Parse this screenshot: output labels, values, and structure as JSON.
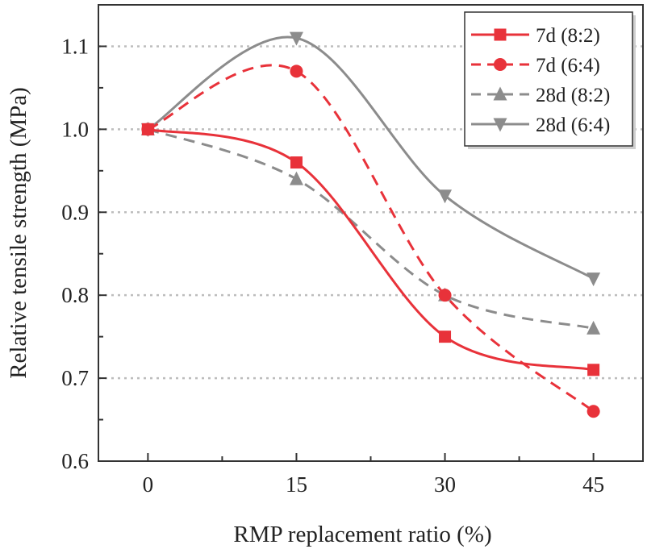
{
  "chart_data": {
    "type": "line",
    "x": [
      0,
      15,
      30,
      45
    ],
    "xticks": [
      "0",
      "15",
      "30",
      "45"
    ],
    "yticks": [
      "0.6",
      "0.7",
      "0.8",
      "0.9",
      "1.0",
      "1.1"
    ],
    "xlabel": "RMP replacement ratio (%)",
    "ylabel": "Relative tensile strength (MPa)",
    "xlim": [
      -5,
      50
    ],
    "ylim": [
      0.6,
      1.15
    ],
    "grid": "horizontal dotted",
    "legend_position": "top-right",
    "series": [
      {
        "name": "7d (8:2)",
        "values": [
          1.0,
          0.96,
          0.75,
          0.71
        ],
        "color": "#e8323a",
        "dash": "solid",
        "marker": "square"
      },
      {
        "name": "7d (6:4)",
        "values": [
          1.0,
          1.07,
          0.8,
          0.66
        ],
        "color": "#e8323a",
        "dash": "dashed",
        "marker": "circle"
      },
      {
        "name": "28d (8:2)",
        "values": [
          1.0,
          0.94,
          0.8,
          0.76
        ],
        "color": "#8c8c8c",
        "dash": "dashed",
        "marker": "triangle-up"
      },
      {
        "name": "28d (6:4)",
        "values": [
          1.0,
          1.11,
          0.92,
          0.82
        ],
        "color": "#8c8c8c",
        "dash": "solid",
        "marker": "triangle-down"
      }
    ]
  }
}
